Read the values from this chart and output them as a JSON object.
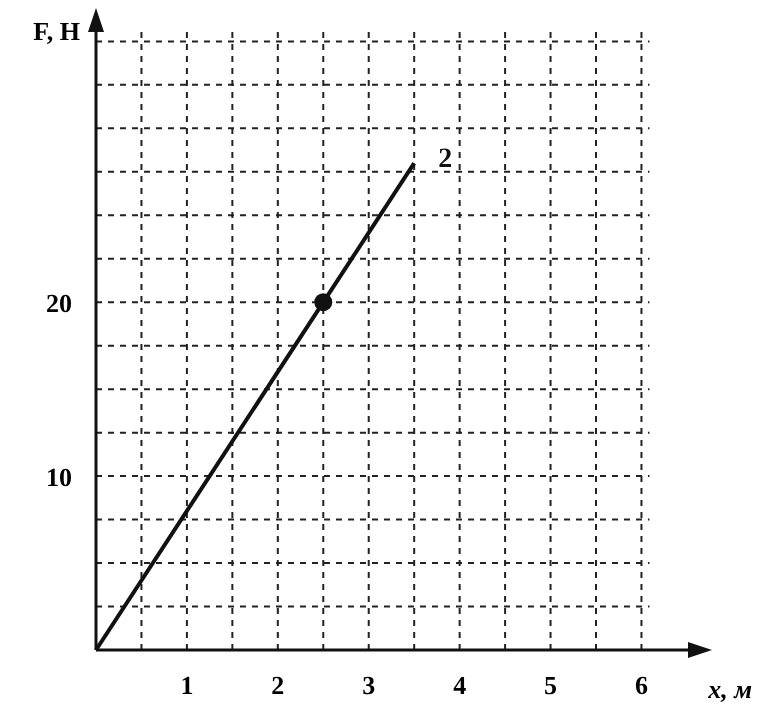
{
  "chart_data": {
    "type": "line",
    "xlabel": "x, м",
    "ylabel": "F, Н",
    "xlim": [
      0,
      6.6
    ],
    "ylim": [
      0,
      36
    ],
    "xticks": [
      {
        "value": 0.5,
        "label": null
      },
      1,
      {
        "value": 1.5,
        "label": null
      },
      2,
      {
        "value": 2.5,
        "label": null
      },
      3,
      {
        "value": 3.5,
        "label": null
      },
      4,
      {
        "value": 4.5,
        "label": null
      },
      5,
      {
        "value": 5.5,
        "label": null
      },
      6
    ],
    "yticks": [
      {
        "value": 2.5,
        "label": null
      },
      {
        "value": 5,
        "label": null
      },
      {
        "value": 7.5,
        "label": null
      },
      10,
      {
        "value": 12.5,
        "label": null
      },
      {
        "value": 15,
        "label": null
      },
      {
        "value": 17.5,
        "label": null
      },
      20,
      {
        "value": 22.5,
        "label": null
      },
      {
        "value": 25,
        "label": null
      },
      {
        "value": 27.5,
        "label": null
      },
      {
        "value": 30,
        "label": null
      },
      {
        "value": 32.5,
        "label": null
      },
      {
        "value": 35,
        "label": null
      }
    ],
    "grid": true,
    "series": [
      {
        "name": "2",
        "color": "#111111",
        "x": [
          0,
          3.5
        ],
        "values": [
          0,
          28
        ],
        "marker": "none"
      },
      {
        "type": "scatter",
        "color": "#111111",
        "x": [
          2.5
        ],
        "values": [
          20
        ],
        "marker": "circle"
      }
    ]
  }
}
